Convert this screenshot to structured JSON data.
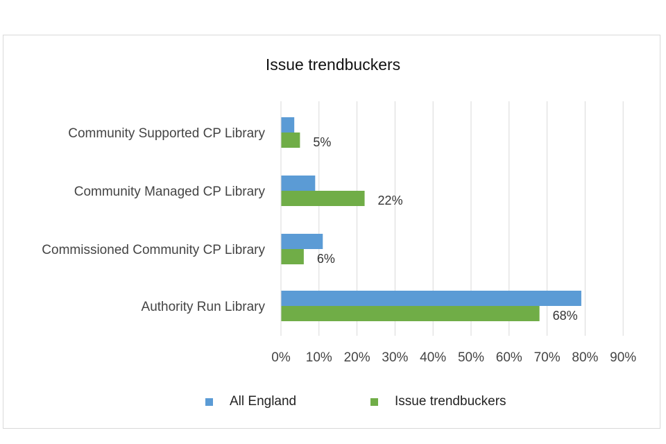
{
  "chart_data": {
    "type": "bar",
    "orientation": "horizontal",
    "title": "Issue trendbuckers",
    "categories": [
      "Community Supported CP Library",
      "Community Managed CP Library",
      "Commissioned Community CP Library",
      "Authority Run Library"
    ],
    "series": [
      {
        "name": "All England",
        "values": [
          3.5,
          9,
          11,
          79
        ],
        "color": "#5b9bd5",
        "data_labels": [
          "",
          "",
          "",
          ""
        ]
      },
      {
        "name": "Issue trendbuckers",
        "values": [
          5,
          22,
          6,
          68
        ],
        "color": "#70ad47",
        "data_labels": [
          "5%",
          "22%",
          "6%",
          "68%"
        ]
      }
    ],
    "xlim": [
      0,
      90
    ],
    "xticks": [
      "0%",
      "10%",
      "20%",
      "30%",
      "40%",
      "50%",
      "60%",
      "70%",
      "80%",
      "90%"
    ],
    "grid": "vertical",
    "legend_position": "bottom",
    "xlabel": "",
    "ylabel": ""
  }
}
